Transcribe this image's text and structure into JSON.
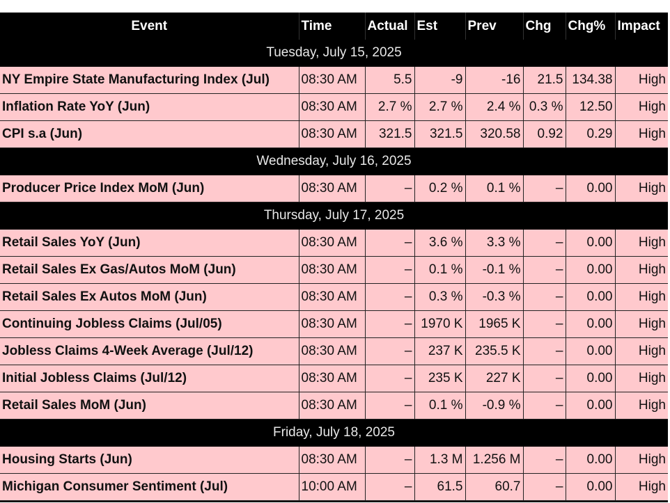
{
  "headers": {
    "event": "Event",
    "time": "Time",
    "actual": "Actual",
    "est": "Est",
    "prev": "Prev",
    "chg": "Chg",
    "chg_pct": "Chg%",
    "impact": "Impact"
  },
  "days": [
    {
      "label": "Tuesday, July 15, 2025",
      "events": [
        {
          "event": "NY Empire State Manufacturing Index (Jul)",
          "time": "08:30 AM",
          "actual": "5.5",
          "est": "-9",
          "prev": "-16",
          "chg": "21.5",
          "chg_pct": "134.38",
          "impact": "High"
        },
        {
          "event": "Inflation Rate YoY (Jun)",
          "time": "08:30 AM",
          "actual": "2.7 %",
          "est": "2.7 %",
          "prev": "2.4 %",
          "chg": "0.3 %",
          "chg_pct": "12.50",
          "impact": "High"
        },
        {
          "event": "CPI s.a (Jun)",
          "time": "08:30 AM",
          "actual": "321.5",
          "est": "321.5",
          "prev": "320.58",
          "chg": "0.92",
          "chg_pct": "0.29",
          "impact": "High"
        }
      ]
    },
    {
      "label": "Wednesday, July 16, 2025",
      "events": [
        {
          "event": "Producer Price Index MoM (Jun)",
          "time": "08:30 AM",
          "actual": "–",
          "est": "0.2 %",
          "prev": "0.1 %",
          "chg": "–",
          "chg_pct": "0.00",
          "impact": "High"
        }
      ]
    },
    {
      "label": "Thursday, July 17, 2025",
      "events": [
        {
          "event": "Retail Sales YoY (Jun)",
          "time": "08:30 AM",
          "actual": "–",
          "est": "3.6 %",
          "prev": "3.3 %",
          "chg": "–",
          "chg_pct": "0.00",
          "impact": "High"
        },
        {
          "event": "Retail Sales Ex Gas/Autos MoM (Jun)",
          "time": "08:30 AM",
          "actual": "–",
          "est": "0.1 %",
          "prev": "-0.1 %",
          "chg": "–",
          "chg_pct": "0.00",
          "impact": "High"
        },
        {
          "event": "Retail Sales Ex Autos MoM (Jun)",
          "time": "08:30 AM",
          "actual": "–",
          "est": "0.3 %",
          "prev": "-0.3 %",
          "chg": "–",
          "chg_pct": "0.00",
          "impact": "High"
        },
        {
          "event": "Continuing Jobless Claims (Jul/05)",
          "time": "08:30 AM",
          "actual": "–",
          "est": "1970 K",
          "prev": "1965 K",
          "chg": "–",
          "chg_pct": "0.00",
          "impact": "High"
        },
        {
          "event": "Jobless Claims 4-Week Average (Jul/12)",
          "time": "08:30 AM",
          "actual": "–",
          "est": "237 K",
          "prev": "235.5 K",
          "chg": "–",
          "chg_pct": "0.00",
          "impact": "High"
        },
        {
          "event": "Initial Jobless Claims (Jul/12)",
          "time": "08:30 AM",
          "actual": "–",
          "est": "235 K",
          "prev": "227 K",
          "chg": "–",
          "chg_pct": "0.00",
          "impact": "High"
        },
        {
          "event": "Retail Sales MoM (Jun)",
          "time": "08:30 AM",
          "actual": "–",
          "est": "0.1 %",
          "prev": "-0.9 %",
          "chg": "–",
          "chg_pct": "0.00",
          "impact": "High"
        }
      ]
    },
    {
      "label": "Friday, July 18, 2025",
      "events": [
        {
          "event": "Housing Starts (Jun)",
          "time": "08:30 AM",
          "actual": "–",
          "est": "1.3 M",
          "prev": "1.256 M",
          "chg": "–",
          "chg_pct": "0.00",
          "impact": "High"
        },
        {
          "event": "Michigan Consumer Sentiment (Jul)",
          "time": "10:00 AM",
          "actual": "–",
          "est": "61.5",
          "prev": "60.7",
          "chg": "–",
          "chg_pct": "0.00",
          "impact": "High"
        }
      ]
    }
  ],
  "colors": {
    "header_bg": "#000000",
    "day_row_bg": "#000000",
    "event_row_bg": "#ffc9cd"
  }
}
